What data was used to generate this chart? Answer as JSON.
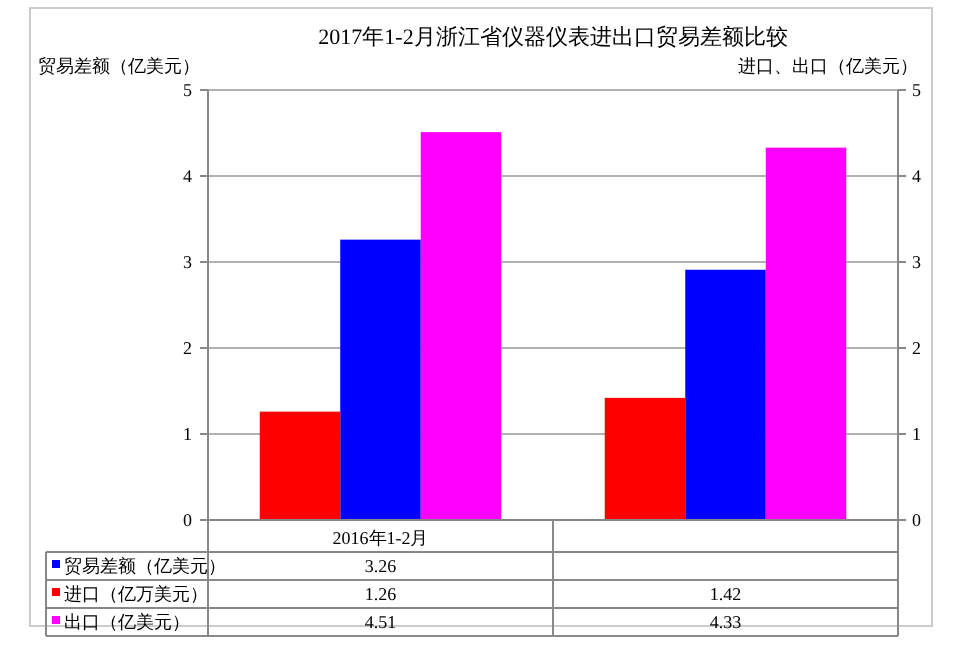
{
  "chart_data": {
    "type": "bar",
    "title": "2017年1-2月浙江省仪器仪表进出口贸易差额比较",
    "ylabel": "贸易差额（亿美元）",
    "y2label": "进口、出口（亿美元）",
    "categories": [
      "2016年1-2月",
      null
    ],
    "series": [
      {
        "name": "贸易差额（亿美元）",
        "color": "#0000ff",
        "values": [
          3.26,
          2.91
        ],
        "value_labels": [
          "3.26",
          null
        ]
      },
      {
        "name": "进口（亿万美元）",
        "color": "#ff0000",
        "values": [
          1.26,
          1.42
        ],
        "value_labels": [
          "1.26",
          "1.42"
        ],
        "axis": "y2"
      },
      {
        "name": "出口（亿美元）",
        "color": "#ff00ff",
        "values": [
          4.51,
          4.33
        ],
        "value_labels": [
          "4.51",
          "4.33"
        ],
        "axis": "y2"
      }
    ],
    "ylim": [
      0,
      5
    ],
    "yticks": [
      0,
      1,
      2,
      3,
      4,
      5
    ],
    "y2lim": [
      0,
      5
    ],
    "y2ticks": [
      0,
      1,
      2,
      3,
      4,
      5
    ],
    "grid": "y",
    "legend": "bottom"
  }
}
